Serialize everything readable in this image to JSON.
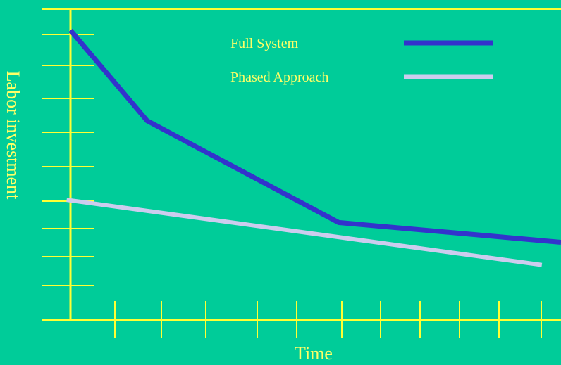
{
  "chart_data": {
    "type": "line",
    "xlabel": "Time",
    "ylabel": "Labor investment",
    "x_ticks": 11,
    "y_ticks": 10,
    "grid": false,
    "legend_position": "top-right",
    "series": [
      {
        "name": "Full System",
        "color": "#3333CC",
        "points": [
          [
            0.0,
            10.2
          ],
          [
            1.0,
            7.0
          ],
          [
            3.5,
            3.4
          ],
          [
            6.4,
            2.7
          ]
        ]
      },
      {
        "name": "Phased Approach",
        "color": "#CCCCEE",
        "points": [
          [
            -0.05,
            4.2
          ],
          [
            6.15,
            1.9
          ]
        ]
      }
    ],
    "xlim": [
      0,
      6.4
    ],
    "ylim": [
      0,
      11.0
    ]
  },
  "colors": {
    "background": "#00CC99",
    "axis": "#FFFF33",
    "text": "#FFFF66"
  }
}
